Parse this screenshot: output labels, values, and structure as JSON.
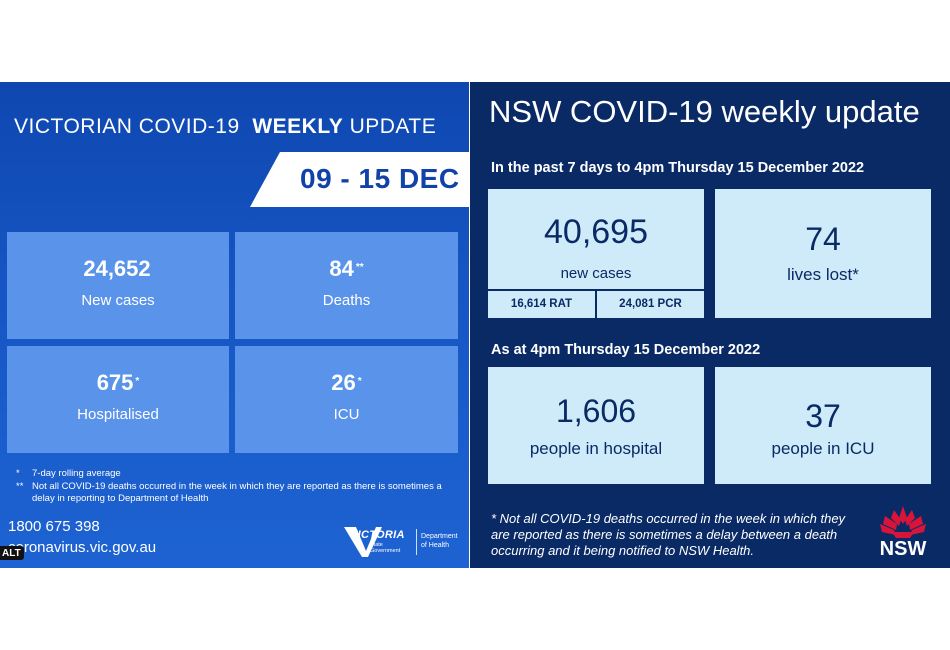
{
  "vic": {
    "title_prefix": "VICTORIAN COVID-19",
    "title_bold": "WEEKLY",
    "title_suffix": "UPDATE",
    "date_range": "09 - 15 DEC",
    "cards": [
      {
        "value": "24,652",
        "mark": "",
        "label": "New cases"
      },
      {
        "value": "84",
        "mark": "**",
        "label": "Deaths"
      },
      {
        "value": "675",
        "mark": "*",
        "label": "Hospitalised"
      },
      {
        "value": "26",
        "mark": "*",
        "label": "ICU"
      }
    ],
    "notes": [
      {
        "mark": "*",
        "text": "7-day rolling average"
      },
      {
        "mark": "**",
        "text": "Not all COVID-19 deaths occurred in the week in which they are reported as there is sometimes a delay in reporting to Department of Health"
      }
    ],
    "phone": "1800 675 398",
    "website": "coronavirus.vic.gov.au",
    "alt_badge": "ALT",
    "logo": {
      "word": "VICTORIA",
      "gov_line1": "State",
      "gov_line2": "Government",
      "dept_line1": "Department",
      "dept_line2": "of Health"
    }
  },
  "nsw": {
    "title": "NSW COVID-19 weekly update",
    "subtitle_week": "In the past 7 days to 4pm Thursday 15 December 2022",
    "subtitle_now": "As at 4pm Thursday 15 December 2022",
    "new_cases": {
      "value": "40,695",
      "label": "new cases",
      "rat": "16,614  RAT",
      "pcr": "24,081  PCR"
    },
    "lives_lost": {
      "value": "74",
      "label": "lives lost*"
    },
    "hospital": {
      "value": "1,606",
      "label": "people in hospital"
    },
    "icu": {
      "value": "37",
      "label": "people in ICU"
    },
    "note": "* Not all COVID-19 deaths occurred in the week in which they are reported as there is sometimes a delay between a death occurring and it being notified to NSW Health.",
    "logo_text": "NSW"
  },
  "colors": {
    "vic_blue": "#1656c4",
    "vic_card": "#5a93ea",
    "nsw_navy": "#0a2a66",
    "nsw_card": "#cfeaf8",
    "waratah_red": "#d7153a"
  }
}
